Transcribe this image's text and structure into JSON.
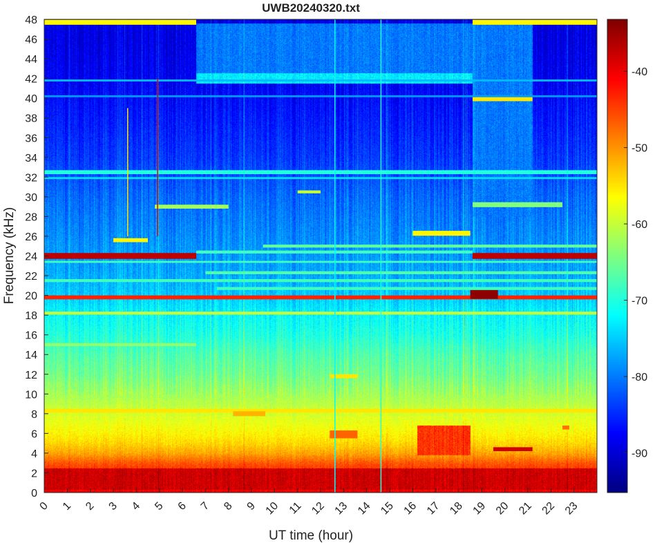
{
  "chart_data": {
    "type": "heatmap",
    "title": "UWB20240320.txt",
    "xlabel": "UT time (hour)",
    "ylabel": "Frequency (kHz)",
    "xlim": [
      0,
      24
    ],
    "ylim": [
      0,
      48
    ],
    "xticks": [
      "0",
      "1",
      "2",
      "3",
      "4",
      "5",
      "6",
      "7",
      "8",
      "9",
      "10",
      "11",
      "12",
      "13",
      "14",
      "15",
      "16",
      "17",
      "18",
      "19",
      "20",
      "21",
      "22",
      "23"
    ],
    "yticks": [
      "0",
      "2",
      "4",
      "6",
      "8",
      "10",
      "12",
      "14",
      "16",
      "18",
      "20",
      "22",
      "24",
      "26",
      "28",
      "30",
      "32",
      "34",
      "36",
      "38",
      "40",
      "42",
      "44",
      "46",
      "48"
    ],
    "colormap": "jet",
    "clim": [
      -95.2,
      -33.2
    ],
    "colorbar_ticks": [
      "-40",
      "-50",
      "-60",
      "-70",
      "-80",
      "-90"
    ],
    "colorbar_tick_values": [
      -40,
      -50,
      -60,
      -70,
      -80,
      -90
    ],
    "background_profile_db": [
      [
        0,
        -40
      ],
      [
        1,
        -41
      ],
      [
        2,
        -43
      ],
      [
        3,
        -46
      ],
      [
        4,
        -51
      ],
      [
        5,
        -54
      ],
      [
        6,
        -56
      ],
      [
        8,
        -59
      ],
      [
        10,
        -62
      ],
      [
        12,
        -65
      ],
      [
        14,
        -67
      ],
      [
        16,
        -70
      ],
      [
        18,
        -72
      ],
      [
        20,
        -75
      ],
      [
        22,
        -77
      ],
      [
        26,
        -79
      ],
      [
        30,
        -81
      ],
      [
        34,
        -84
      ],
      [
        38,
        -86
      ],
      [
        42,
        -88
      ],
      [
        46,
        -89
      ],
      [
        48,
        -89
      ]
    ],
    "regions": [
      {
        "t": [
          6.6,
          18.6
        ],
        "f": [
          42,
          47.6
        ],
        "db": -80
      },
      {
        "t": [
          6.6,
          18.6
        ],
        "f": [
          41.5,
          42.6
        ],
        "db": -73
      },
      {
        "t": [
          18.6,
          21.2
        ],
        "f": [
          28,
          47.6
        ],
        "db": -80
      },
      {
        "t": [
          16.2,
          18.5
        ],
        "f": [
          3.8,
          6.8
        ],
        "db": -44
      },
      {
        "t": [
          0,
          24
        ],
        "f": [
          0.3,
          2.5
        ],
        "db": -38
      }
    ],
    "lines": [
      {
        "name": "24kHz-a",
        "t": [
          0,
          6.6
        ],
        "f": 24.0,
        "bw": 0.6,
        "db": -37
      },
      {
        "name": "24kHz-b",
        "t": [
          18.6,
          24
        ],
        "f": 24.0,
        "bw": 0.6,
        "db": -37
      },
      {
        "name": "24.5kHz",
        "t": [
          6.6,
          18.6
        ],
        "f": 24.4,
        "bw": 0.3,
        "db": -68
      },
      {
        "name": "25kHz",
        "t": [
          9.5,
          24
        ],
        "f": 25.0,
        "bw": 0.3,
        "db": -66
      },
      {
        "name": "19.8kHz",
        "t": [
          0,
          24
        ],
        "f": 19.8,
        "bw": 0.4,
        "db": -43
      },
      {
        "name": "20.1kHz-burst",
        "t": [
          18.5,
          19.7
        ],
        "f": 20.1,
        "bw": 0.9,
        "db": -34
      },
      {
        "name": "18.2kHz",
        "t": [
          0,
          24
        ],
        "f": 18.2,
        "bw": 0.3,
        "db": -60
      },
      {
        "name": "8.3kHz",
        "t": [
          0,
          24
        ],
        "f": 8.3,
        "bw": 0.4,
        "db": -55
      },
      {
        "name": "8kHz-b",
        "t": [
          8.2,
          9.6
        ],
        "f": 8.0,
        "bw": 0.5,
        "db": -52
      },
      {
        "name": "47.7kHz-a",
        "t": [
          0,
          6.6
        ],
        "f": 47.7,
        "bw": 0.5,
        "db": -56
      },
      {
        "name": "47.7kHz-b",
        "t": [
          18.6,
          24
        ],
        "f": 47.7,
        "bw": 0.5,
        "db": -56
      },
      {
        "name": "40kHz",
        "t": [
          18.6,
          21.2
        ],
        "f": 40.0,
        "bw": 0.6,
        "db": -55
      },
      {
        "name": "26.3kHz",
        "t": [
          16.0,
          18.5
        ],
        "f": 26.3,
        "bw": 0.5,
        "db": -56
      },
      {
        "name": "25.6kHz",
        "t": [
          3.0,
          4.5
        ],
        "f": 25.6,
        "bw": 0.4,
        "db": -56
      },
      {
        "name": "32.5kHz",
        "t": [
          0,
          24
        ],
        "f": 32.5,
        "bw": 0.4,
        "db": -70
      },
      {
        "name": "32kHz",
        "t": [
          0,
          24
        ],
        "f": 31.9,
        "bw": 0.2,
        "db": -74
      },
      {
        "name": "22.3kHz",
        "t": [
          7,
          24
        ],
        "f": 22.3,
        "bw": 0.3,
        "db": -67
      },
      {
        "name": "21.5kHz",
        "t": [
          0,
          24
        ],
        "f": 21.5,
        "bw": 0.3,
        "db": -68
      },
      {
        "name": "20.6kHz",
        "t": [
          7.5,
          24
        ],
        "f": 20.7,
        "bw": 0.3,
        "db": -68
      },
      {
        "name": "23.5kHz",
        "t": [
          0,
          24
        ],
        "f": 23.4,
        "bw": 0.2,
        "db": -68
      },
      {
        "name": "29kHz",
        "t": [
          4.8,
          8.0
        ],
        "f": 29.0,
        "bw": 0.4,
        "db": -62
      },
      {
        "name": "29kHz-b",
        "t": [
          18.6,
          22.5
        ],
        "f": 29.2,
        "bw": 0.5,
        "db": -64
      },
      {
        "name": "30.5kHz",
        "t": [
          11.0,
          12.0
        ],
        "f": 30.5,
        "bw": 0.3,
        "db": -60
      },
      {
        "name": "41.8kHz",
        "t": [
          0,
          24
        ],
        "f": 41.8,
        "bw": 0.2,
        "db": -76
      },
      {
        "name": "40.2kHz",
        "t": [
          0,
          24
        ],
        "f": 40.2,
        "bw": 0.2,
        "db": -78
      },
      {
        "name": "4.4kHz",
        "t": [
          19.5,
          21.2
        ],
        "f": 4.4,
        "bw": 0.4,
        "db": -38
      },
      {
        "name": "6.6kHz",
        "t": [
          22.5,
          22.8
        ],
        "f": 6.6,
        "bw": 0.4,
        "db": -48
      },
      {
        "name": "5.9kHz",
        "t": [
          12.4,
          13.6
        ],
        "f": 5.9,
        "bw": 0.8,
        "db": -47
      },
      {
        "name": "11.8kHz",
        "t": [
          12.4,
          13.6
        ],
        "f": 11.8,
        "bw": 0.4,
        "db": -55
      },
      {
        "name": "15kHz",
        "t": [
          0,
          6.6
        ],
        "f": 15.0,
        "bw": 0.3,
        "db": -63
      }
    ],
    "vertical_spikes": [
      {
        "t": 4.9,
        "f": [
          26,
          42
        ],
        "db": -40
      },
      {
        "t": 3.6,
        "f": [
          26,
          39
        ],
        "db": -55
      },
      {
        "t": 14.6,
        "f": [
          0,
          48
        ],
        "db": -70
      },
      {
        "t": 12.6,
        "f": [
          0,
          48
        ],
        "db": -72
      }
    ],
    "colorbar_colors": {
      "frame": "#262626"
    }
  }
}
